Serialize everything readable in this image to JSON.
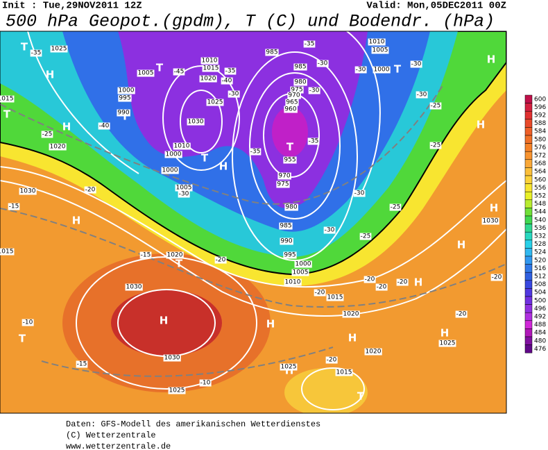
{
  "header": {
    "init": "Init : Tue,29NOV2011 12Z",
    "valid": "Valid: Mon,05DEC2011 00Z",
    "title": "500 hPa Geopot.(gpdm), T (C) und Bodendr. (hPa)"
  },
  "legend": {
    "levels": [
      600,
      596,
      592,
      588,
      584,
      580,
      576,
      572,
      568,
      564,
      560,
      556,
      552,
      548,
      544,
      540,
      536,
      532,
      528,
      524,
      520,
      516,
      512,
      508,
      504,
      500,
      496,
      492,
      488,
      484,
      480,
      476
    ],
    "colors": [
      "#c0104a",
      "#d42040",
      "#e03030",
      "#e84a2a",
      "#ee5f28",
      "#f07028",
      "#f58228",
      "#f89430",
      "#f9a838",
      "#fbbf3a",
      "#fcd23a",
      "#f8e530",
      "#e8f028",
      "#b8ec30",
      "#70e038",
      "#40d850",
      "#30d890",
      "#28d8c0",
      "#28d0e8",
      "#30b8f0",
      "#3098f0",
      "#3078e8",
      "#3060e0",
      "#3848e0",
      "#5038e0",
      "#7030e0",
      "#9030e0",
      "#b030e0",
      "#d028d8",
      "#b018b8",
      "#8010a0",
      "#600888"
    ]
  },
  "map": {
    "pressure_centers": [
      "T",
      "H",
      "T",
      "T",
      "T",
      "H",
      "T",
      "H",
      "T",
      "T",
      "H",
      "H",
      "H",
      "H",
      "H",
      "T",
      "H",
      "T",
      "H",
      "H",
      "H",
      "H",
      "T",
      "H"
    ],
    "isobar_labels": [
      "1025",
      "985",
      "1010",
      "1005",
      "1000",
      "1005",
      "1000",
      "995",
      "990",
      "1010",
      "1015",
      "1020",
      "1025",
      "1030",
      "985",
      "980",
      "975",
      "970",
      "965",
      "960",
      "955",
      "970",
      "975",
      "980",
      "985",
      "990",
      "995",
      "1000",
      "1005",
      "1010",
      "1015",
      "1020",
      "1025",
      "1015",
      "1030",
      "1030",
      "1025",
      "1020",
      "1030",
      "1020",
      "1015",
      "1010",
      "1005",
      "1000",
      "1000",
      "1020",
      "1025",
      "1030",
      "1015"
    ],
    "temperature_labels": [
      "-35",
      "-45",
      "-40",
      "-25",
      "-35",
      "-40",
      "-30",
      "-35",
      "-35",
      "-30",
      "-30",
      "-30",
      "-30",
      "-25",
      "-25",
      "-30",
      "-30",
      "-25",
      "-20",
      "-15",
      "-15",
      "-20",
      "-30",
      "-25",
      "-30",
      "-20",
      "-20",
      "-20",
      "-20",
      "-20",
      "-10",
      "-15",
      "-10",
      "-20",
      "-20",
      "-35"
    ]
  },
  "footer": {
    "lines": [
      "Daten: GFS-Modell des amerikanischen Wetterdienstes",
      "(C) Wetterzentrale",
      "www.wetterzentrale.de"
    ]
  }
}
